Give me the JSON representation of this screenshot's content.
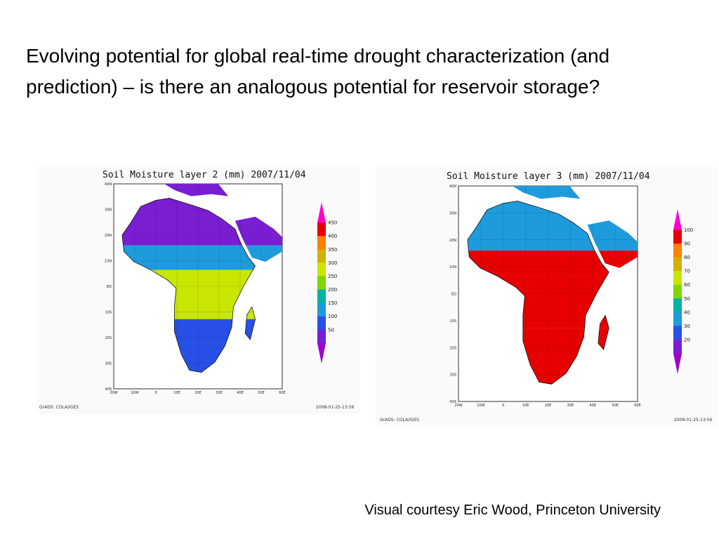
{
  "slide": {
    "title": "Evolving potential for global real-time drought characterization (and prediction) – is there an analogous potential for reservoir storage?",
    "credit": "Visual courtesy Eric Wood, Princeton University"
  },
  "maps": [
    {
      "title": "Soil Moisture layer 2 (mm) 2007/11/04",
      "lat_labels": [
        "40N",
        "30N",
        "20N",
        "10N",
        "EQ",
        "10S",
        "20S",
        "30S",
        "40S"
      ],
      "lon_labels": [
        "20W",
        "10W",
        "0",
        "10E",
        "20E",
        "30E",
        "40E",
        "50E",
        "60E"
      ],
      "colorbar_labels": [
        "450",
        "400",
        "350",
        "300",
        "250",
        "200",
        "150",
        "100",
        "50"
      ],
      "colorbar_colors": [
        "#ff00cc",
        "#e60000",
        "#ff7f00",
        "#d4b000",
        "#c8e600",
        "#7fd700",
        "#00b4a0",
        "#1e9bdc",
        "#2850e6",
        "#7a1ed2",
        "#a000c8"
      ],
      "footer_left": "GrADS: COLA/IGES",
      "footer_right": "2008-01-25-13:56",
      "dominant_regions": {
        "sahara": "#7a1ed2",
        "sahel": "#1e9bdc",
        "central": "#c8e600",
        "south": "#2850e6"
      }
    },
    {
      "title": "Soil Moisture layer 3 (mm) 2007/11/04",
      "lat_labels": [
        "40N",
        "30N",
        "20N",
        "10N",
        "EQ",
        "10S",
        "20S",
        "30S",
        "40S"
      ],
      "lon_labels": [
        "20W",
        "10W",
        "0",
        "10E",
        "20E",
        "30E",
        "40E",
        "50E",
        "60E"
      ],
      "colorbar_labels": [
        "100",
        "90",
        "80",
        "70",
        "60",
        "50",
        "40",
        "30",
        "20"
      ],
      "colorbar_colors": [
        "#ff00cc",
        "#e60000",
        "#ff7f00",
        "#d4b000",
        "#c8e600",
        "#7fd700",
        "#00b4a0",
        "#1e9bdc",
        "#2850e6",
        "#7a1ed2",
        "#a000c8"
      ],
      "footer_left": "GrADS: COLA/IGES",
      "footer_right": "2008-01-25-13:56",
      "dominant_regions": {
        "sahara": "#1e9bdc",
        "sahel": "#e60000",
        "central": "#e60000",
        "south": "#e60000"
      }
    }
  ]
}
